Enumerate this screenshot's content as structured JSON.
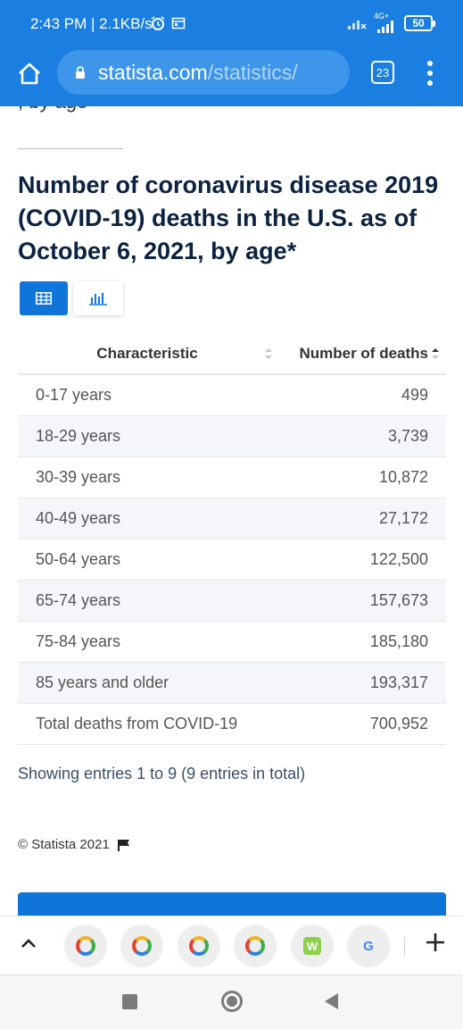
{
  "status_bar": {
    "time": "2:43 PM | 2.1KB/s",
    "network": "4G+",
    "battery": "50"
  },
  "browser": {
    "url_domain": "statista.com",
    "url_path": "/statistics/",
    "tab_count": "23"
  },
  "page": {
    "cutoff_text": ", by age",
    "heading": "Number of coronavirus disease 2019 (COVID-19) deaths in the U.S. as of October 6, 2021, by age*",
    "columns": {
      "characteristic": "Characteristic",
      "deaths": "Number of deaths"
    },
    "rows": [
      {
        "label": "0-17 years",
        "value": "499"
      },
      {
        "label": "18-29 years",
        "value": "3,739"
      },
      {
        "label": "30-39 years",
        "value": "10,872"
      },
      {
        "label": "40-49 years",
        "value": "27,172"
      },
      {
        "label": "50-64 years",
        "value": "122,500"
      },
      {
        "label": "65-74 years",
        "value": "157,673"
      },
      {
        "label": "75-84 years",
        "value": "185,180"
      },
      {
        "label": "85 years and older",
        "value": "193,317"
      },
      {
        "label": "Total deaths from COVID-19",
        "value": "700,952"
      }
    ],
    "entries_info": "Showing entries 1 to 9 (9 entries in total)",
    "copyright": "© Statista 2021"
  },
  "tab_strip": {
    "tabs": [
      "chrome-ring-icon",
      "chrome-ring-icon",
      "chrome-ring-icon",
      "chrome-ring-icon",
      "w-app-icon",
      "google-icon"
    ],
    "w_letter": "W",
    "g_letter": "G"
  },
  "colors": {
    "brand_blue": "#1a7fe0",
    "accent_blue": "#0f75d9",
    "heading": "#0b2340"
  }
}
